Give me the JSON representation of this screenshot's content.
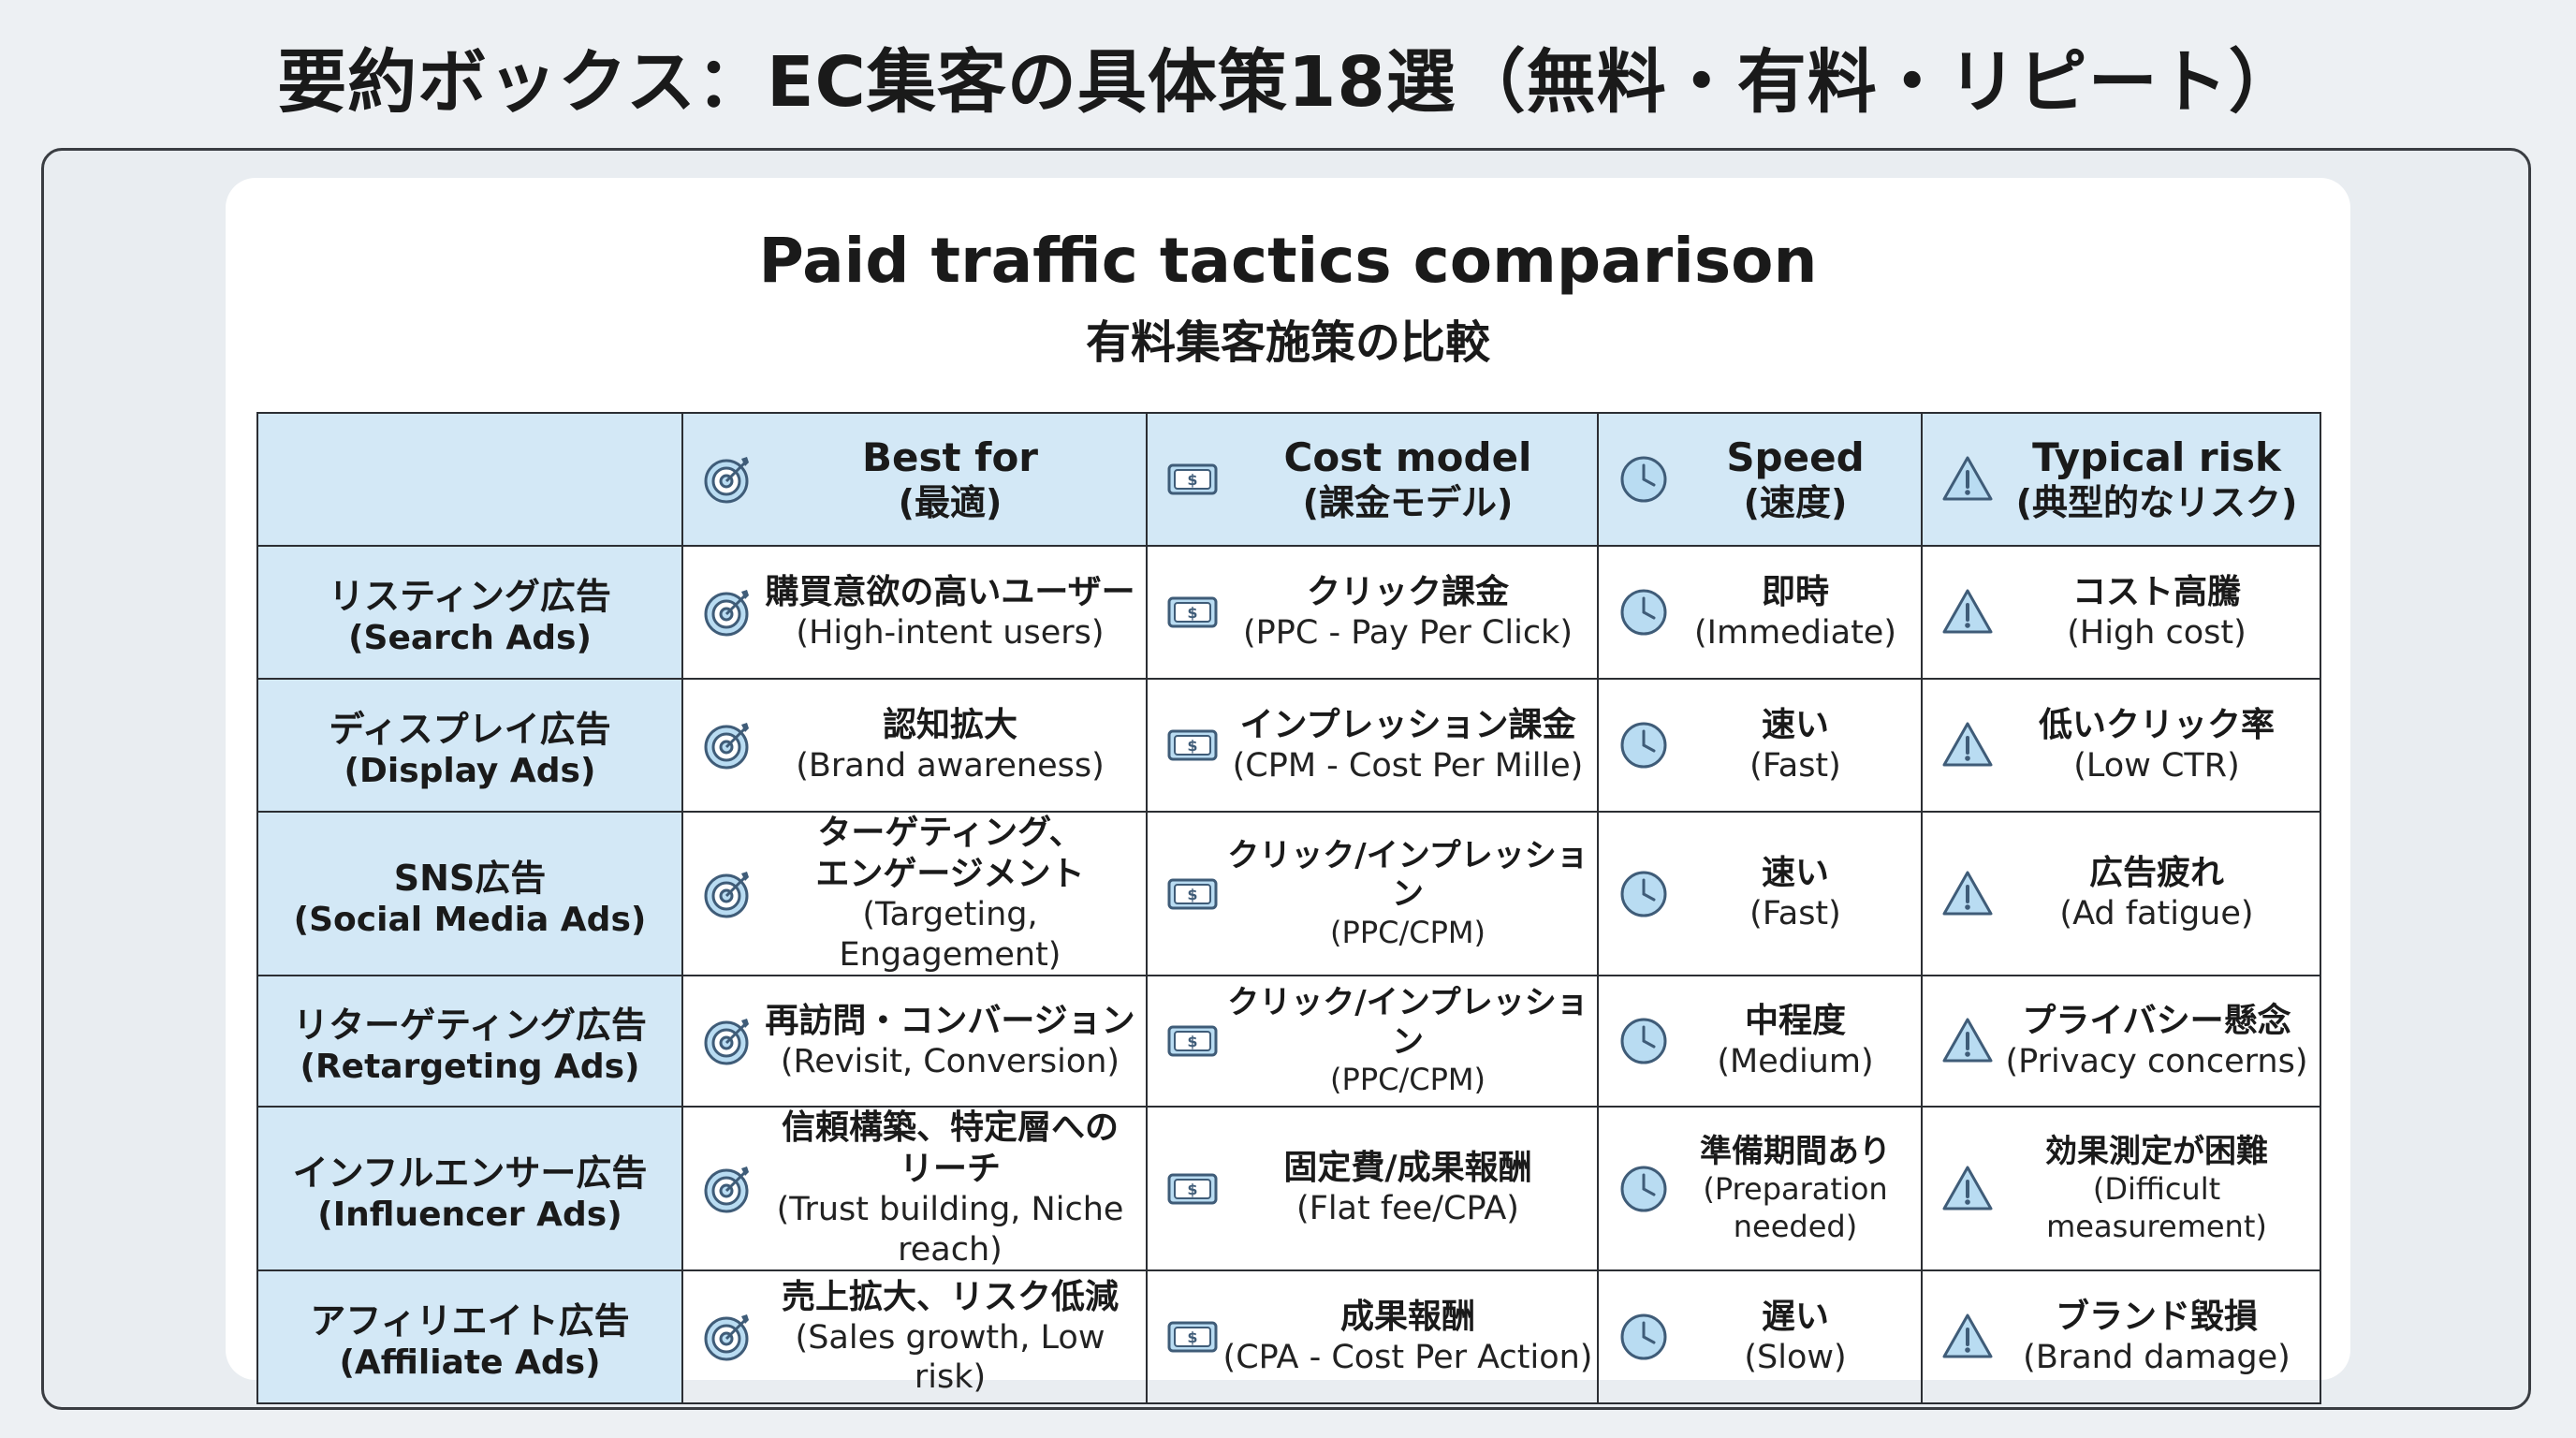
{
  "page_title": "要約ボックス：EC集客の具体策18選（無料・有料・リピート）",
  "table_title": "Paid traffic tactics comparison",
  "table_subtitle": "有料集客施策の比較",
  "colors": {
    "header_bg": "#d3e8f6",
    "icon_stroke": "#3f5c78",
    "icon_fill": "#b9dcf2"
  },
  "columns": [
    {
      "key": "best",
      "icon": "target-icon",
      "en": "Best for",
      "ja": "(最適)"
    },
    {
      "key": "cost",
      "icon": "money-icon",
      "en": "Cost model",
      "ja": "(課金モデル)"
    },
    {
      "key": "speed",
      "icon": "clock-icon",
      "en": "Speed",
      "ja": "(速度)"
    },
    {
      "key": "risk",
      "icon": "warning-icon",
      "en": "Typical risk",
      "ja": "(典型的なリスク)"
    }
  ],
  "rows": [
    {
      "ja": "リスティング広告",
      "en": "(Search Ads)",
      "best": {
        "ja": "購買意欲の高いユーザー",
        "en": "(High-intent users)"
      },
      "cost": {
        "ja": "クリック課金",
        "en": "(PPC - Pay Per Click)"
      },
      "speed": {
        "ja": "即時",
        "en": "(Immediate)"
      },
      "risk": {
        "ja": "コスト高騰",
        "en": "(High cost)"
      }
    },
    {
      "ja": "ディスプレイ広告",
      "en": "(Display Ads)",
      "best": {
        "ja": "認知拡大",
        "en": "(Brand awareness)"
      },
      "cost": {
        "ja": "インプレッション課金",
        "en": "(CPM - Cost Per Mille)"
      },
      "speed": {
        "ja": "速い",
        "en": "(Fast)"
      },
      "risk": {
        "ja": "低いクリック率",
        "en": "(Low CTR)"
      }
    },
    {
      "ja": "SNS広告",
      "en": "(Social Media Ads)",
      "best": {
        "ja": "ターゲティング、\nエンゲージメント",
        "en": "(Targeting, Engagement)"
      },
      "cost": {
        "ja": "クリック/インプレッション",
        "en": "(PPC/CPM)"
      },
      "speed": {
        "ja": "速い",
        "en": "(Fast)"
      },
      "risk": {
        "ja": "広告疲れ",
        "en": "(Ad fatigue)"
      }
    },
    {
      "ja": "リターゲティング広告",
      "en": "(Retargeting Ads)",
      "best": {
        "ja": "再訪問・コンバージョン",
        "en": "(Revisit, Conversion)"
      },
      "cost": {
        "ja": "クリック/インプレッション",
        "en": "(PPC/CPM)"
      },
      "speed": {
        "ja": "中程度",
        "en": "(Medium)"
      },
      "risk": {
        "ja": "プライバシー懸念",
        "en": "(Privacy concerns)"
      }
    },
    {
      "ja": "インフルエンサー広告",
      "en": "(Influencer Ads)",
      "best": {
        "ja": "信頼構築、特定層への\nリーチ",
        "en": "(Trust building, Niche reach)"
      },
      "cost": {
        "ja": "固定費/成果報酬",
        "en": "(Flat fee/CPA)"
      },
      "speed": {
        "ja": "準備期間あり",
        "en": "(Preparation needed)"
      },
      "risk": {
        "ja": "効果測定が困難",
        "en": "(Difficult measurement)"
      }
    },
    {
      "ja": "アフィリエイト広告",
      "en": "(Affiliate Ads)",
      "best": {
        "ja": "売上拡大、リスク低減",
        "en": "(Sales growth, Low risk)"
      },
      "cost": {
        "ja": "成果報酬",
        "en": "(CPA - Cost Per Action)"
      },
      "speed": {
        "ja": "遅い",
        "en": "(Slow)"
      },
      "risk": {
        "ja": "ブランド毀損",
        "en": "(Brand damage)"
      }
    }
  ]
}
